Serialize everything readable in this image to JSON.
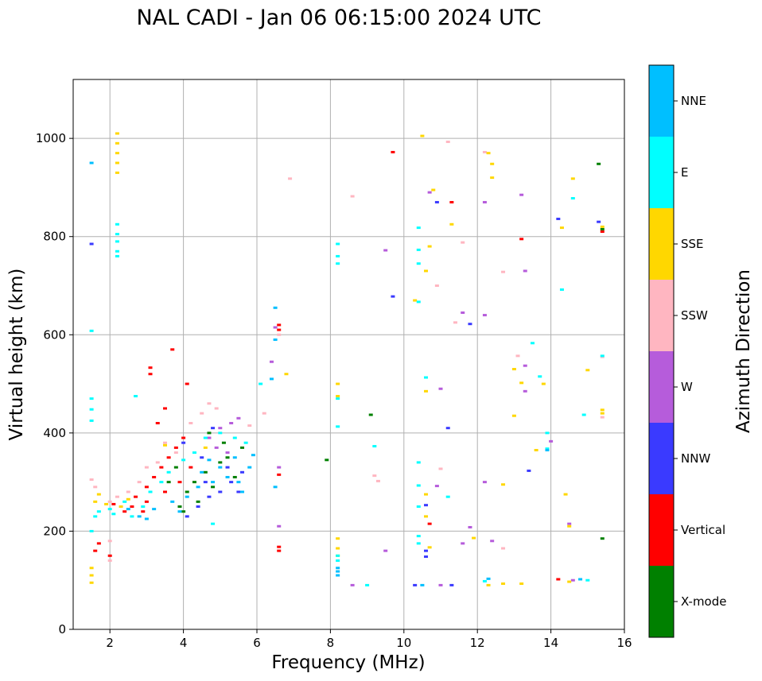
{
  "chart_data": {
    "type": "scatter",
    "title": "NAL CADI - Jan 06 06:15:00 2024 UTC",
    "xlabel": "Frequency (MHz)",
    "ylabel": "Virtual height (km)",
    "xlim": [
      1,
      16
    ],
    "ylim": [
      0,
      1120
    ],
    "xticks": [
      2,
      4,
      6,
      8,
      10,
      12,
      14,
      16
    ],
    "yticks": [
      0,
      200,
      400,
      600,
      800,
      1000
    ],
    "grid": true,
    "colorbar": {
      "label": "Azimuth Direction",
      "categories": [
        {
          "name": "X-mode",
          "color": "#008000"
        },
        {
          "name": "Vertical",
          "color": "#ff0000"
        },
        {
          "name": "NNW",
          "color": "#3a3aff"
        },
        {
          "name": "W",
          "color": "#b65cdb"
        },
        {
          "name": "SSW",
          "color": "#ffb6c1"
        },
        {
          "name": "SSE",
          "color": "#ffd700"
        },
        {
          "name": "E",
          "color": "#00ffff"
        },
        {
          "name": "NNE",
          "color": "#00bfff"
        }
      ]
    },
    "series": [
      {
        "name": "X-mode",
        "points": [
          [
            4.3,
            300
          ],
          [
            4.6,
            320
          ],
          [
            5.0,
            340
          ],
          [
            5.2,
            350
          ],
          [
            5.6,
            370
          ],
          [
            3.9,
            250
          ],
          [
            4.1,
            280
          ],
          [
            7.9,
            345
          ],
          [
            9.1,
            437
          ],
          [
            15.3,
            948
          ],
          [
            15.4,
            815
          ],
          [
            15.4,
            185
          ],
          [
            4.8,
            290
          ],
          [
            5.4,
            310
          ],
          [
            4.0,
            240
          ],
          [
            4.4,
            260
          ],
          [
            3.6,
            300
          ],
          [
            5.1,
            380
          ],
          [
            4.7,
            400
          ],
          [
            3.8,
            330
          ]
        ]
      },
      {
        "name": "Vertical",
        "points": [
          [
            2.1,
            255
          ],
          [
            2.4,
            240
          ],
          [
            2.7,
            270
          ],
          [
            3.0,
            290
          ],
          [
            3.2,
            310
          ],
          [
            3.4,
            330
          ],
          [
            3.6,
            350
          ],
          [
            3.8,
            370
          ],
          [
            4.0,
            390
          ],
          [
            3.3,
            420
          ],
          [
            3.5,
            450
          ],
          [
            3.1,
            520
          ],
          [
            3.1,
            533
          ],
          [
            3.7,
            570
          ],
          [
            4.1,
            500
          ],
          [
            6.6,
            620
          ],
          [
            6.6,
            610
          ],
          [
            6.6,
            315
          ],
          [
            6.6,
            168
          ],
          [
            6.6,
            160
          ],
          [
            9.7,
            972
          ],
          [
            11.3,
            870
          ],
          [
            13.2,
            795
          ],
          [
            15.4,
            810
          ],
          [
            10.7,
            215
          ],
          [
            14.2,
            102
          ],
          [
            1.6,
            160
          ],
          [
            1.7,
            175
          ],
          [
            2.0,
            150
          ],
          [
            3.0,
            260
          ],
          [
            2.6,
            250
          ],
          [
            3.9,
            300
          ],
          [
            4.2,
            330
          ],
          [
            2.9,
            240
          ],
          [
            3.5,
            280
          ]
        ]
      },
      {
        "name": "NNW",
        "points": [
          [
            4.1,
            230
          ],
          [
            4.4,
            250
          ],
          [
            4.7,
            270
          ],
          [
            5.0,
            280
          ],
          [
            5.3,
            300
          ],
          [
            5.6,
            320
          ],
          [
            4.0,
            380
          ],
          [
            4.5,
            350
          ],
          [
            4.6,
            300
          ],
          [
            5.2,
            330
          ],
          [
            1.5,
            785
          ],
          [
            9.7,
            678
          ],
          [
            10.9,
            870
          ],
          [
            11.8,
            622
          ],
          [
            14.2,
            836
          ],
          [
            15.3,
            830
          ],
          [
            13.4,
            323
          ],
          [
            10.6,
            160
          ],
          [
            10.6,
            148
          ],
          [
            11.3,
            90
          ],
          [
            10.3,
            90
          ],
          [
            10.6,
            253
          ],
          [
            11.2,
            410
          ],
          [
            4.8,
            410
          ],
          [
            5.5,
            280
          ]
        ]
      },
      {
        "name": "W",
        "points": [
          [
            4.7,
            390
          ],
          [
            5.0,
            410
          ],
          [
            5.3,
            420
          ],
          [
            5.5,
            430
          ],
          [
            4.9,
            370
          ],
          [
            5.2,
            360
          ],
          [
            6.5,
            615
          ],
          [
            6.6,
            210
          ],
          [
            6.6,
            330
          ],
          [
            6.4,
            545
          ],
          [
            9.5,
            772
          ],
          [
            10.7,
            890
          ],
          [
            11.0,
            490
          ],
          [
            11.6,
            645
          ],
          [
            12.2,
            870
          ],
          [
            12.2,
            640
          ],
          [
            12.2,
            300
          ],
          [
            12.4,
            180
          ],
          [
            13.2,
            885
          ],
          [
            13.3,
            730
          ],
          [
            13.3,
            537
          ],
          [
            13.3,
            485
          ],
          [
            14.0,
            383
          ],
          [
            14.5,
            215
          ],
          [
            14.6,
            100
          ],
          [
            11.0,
            90
          ],
          [
            8.6,
            90
          ],
          [
            9.5,
            160
          ],
          [
            11.6,
            175
          ],
          [
            11.8,
            208
          ],
          [
            10.9,
            292
          ]
        ]
      },
      {
        "name": "SSW",
        "points": [
          [
            2.0,
            260
          ],
          [
            2.2,
            270
          ],
          [
            2.5,
            280
          ],
          [
            2.8,
            300
          ],
          [
            3.0,
            330
          ],
          [
            3.3,
            340
          ],
          [
            3.5,
            380
          ],
          [
            3.8,
            360
          ],
          [
            4.2,
            420
          ],
          [
            4.5,
            440
          ],
          [
            4.7,
            460
          ],
          [
            1.5,
            305
          ],
          [
            1.6,
            290
          ],
          [
            2.0,
            180
          ],
          [
            2.0,
            140
          ],
          [
            6.6,
            600
          ],
          [
            6.9,
            918
          ],
          [
            8.6,
            882
          ],
          [
            9.2,
            313
          ],
          [
            9.3,
            302
          ],
          [
            11.2,
            993
          ],
          [
            10.9,
            700
          ],
          [
            11.4,
            625
          ],
          [
            11.6,
            788
          ],
          [
            12.2,
            972
          ],
          [
            12.7,
            728
          ],
          [
            12.7,
            165
          ],
          [
            13.1,
            557
          ],
          [
            15.4,
            555
          ],
          [
            15.4,
            432
          ],
          [
            11.0,
            327
          ],
          [
            6.2,
            440
          ],
          [
            5.8,
            415
          ],
          [
            4.9,
            450
          ]
        ]
      },
      {
        "name": "SSE",
        "points": [
          [
            2.2,
            930
          ],
          [
            2.2,
            950
          ],
          [
            2.2,
            970
          ],
          [
            2.2,
            990
          ],
          [
            2.2,
            1010
          ],
          [
            1.6,
            260
          ],
          [
            1.7,
            275
          ],
          [
            1.9,
            255
          ],
          [
            2.3,
            250
          ],
          [
            2.5,
            265
          ],
          [
            1.5,
            125
          ],
          [
            1.5,
            110
          ],
          [
            1.5,
            95
          ],
          [
            8.2,
            500
          ],
          [
            8.2,
            475
          ],
          [
            8.2,
            185
          ],
          [
            8.2,
            165
          ],
          [
            8.2,
            150
          ],
          [
            10.5,
            1005
          ],
          [
            10.8,
            895
          ],
          [
            10.7,
            780
          ],
          [
            10.6,
            730
          ],
          [
            10.3,
            670
          ],
          [
            10.6,
            485
          ],
          [
            10.6,
            275
          ],
          [
            10.6,
            230
          ],
          [
            10.7,
            167
          ],
          [
            11.3,
            825
          ],
          [
            12.3,
            970
          ],
          [
            12.4,
            948
          ],
          [
            12.4,
            920
          ],
          [
            12.7,
            295
          ],
          [
            12.3,
            90
          ],
          [
            12.7,
            93
          ],
          [
            13.0,
            530
          ],
          [
            13.0,
            435
          ],
          [
            13.2,
            502
          ],
          [
            13.2,
            93
          ],
          [
            13.6,
            365
          ],
          [
            13.8,
            500
          ],
          [
            14.3,
            818
          ],
          [
            14.4,
            275
          ],
          [
            14.6,
            918
          ],
          [
            14.5,
            97
          ],
          [
            14.5,
            210
          ],
          [
            15.0,
            528
          ],
          [
            15.4,
            447
          ],
          [
            15.4,
            440
          ],
          [
            15.4,
            820
          ],
          [
            11.9,
            186
          ],
          [
            6.8,
            520
          ],
          [
            3.5,
            375
          ],
          [
            4.6,
            370
          ]
        ]
      },
      {
        "name": "E",
        "points": [
          [
            2.2,
            825
          ],
          [
            2.2,
            805
          ],
          [
            2.2,
            790
          ],
          [
            2.2,
            770
          ],
          [
            2.2,
            760
          ],
          [
            1.5,
            200
          ],
          [
            1.6,
            230
          ],
          [
            1.7,
            240
          ],
          [
            2.0,
            245
          ],
          [
            2.1,
            235
          ],
          [
            2.4,
            260
          ],
          [
            2.6,
            230
          ],
          [
            2.9,
            250
          ],
          [
            3.1,
            280
          ],
          [
            3.4,
            300
          ],
          [
            3.6,
            320
          ],
          [
            4.0,
            345
          ],
          [
            4.3,
            360
          ],
          [
            4.6,
            390
          ],
          [
            5.0,
            400
          ],
          [
            5.4,
            390
          ],
          [
            5.7,
            380
          ],
          [
            6.1,
            500
          ],
          [
            8.2,
            785
          ],
          [
            8.2,
            760
          ],
          [
            8.2,
            745
          ],
          [
            8.2,
            470
          ],
          [
            8.2,
            413
          ],
          [
            8.2,
            150
          ],
          [
            8.2,
            140
          ],
          [
            10.4,
            818
          ],
          [
            10.4,
            773
          ],
          [
            10.4,
            745
          ],
          [
            10.4,
            667
          ],
          [
            10.4,
            340
          ],
          [
            10.4,
            293
          ],
          [
            10.4,
            250
          ],
          [
            10.4,
            190
          ],
          [
            10.4,
            175
          ],
          [
            11.2,
            270
          ],
          [
            12.2,
            98
          ],
          [
            13.5,
            583
          ],
          [
            13.7,
            515
          ],
          [
            13.9,
            400
          ],
          [
            13.9,
            368
          ],
          [
            14.3,
            692
          ],
          [
            14.6,
            878
          ],
          [
            14.9,
            437
          ],
          [
            15.0,
            100
          ],
          [
            15.4,
            557
          ],
          [
            9.2,
            373
          ],
          [
            9.0,
            90
          ],
          [
            1.5,
            470
          ],
          [
            1.5,
            448
          ],
          [
            1.5,
            425
          ],
          [
            1.5,
            608
          ],
          [
            2.7,
            475
          ],
          [
            4.8,
            215
          ],
          [
            10.6,
            513
          ]
        ]
      },
      {
        "name": "NNE",
        "points": [
          [
            1.5,
            950
          ],
          [
            2.5,
            245
          ],
          [
            2.8,
            230
          ],
          [
            3.2,
            245
          ],
          [
            3.7,
            260
          ],
          [
            4.1,
            270
          ],
          [
            4.4,
            290
          ],
          [
            4.8,
            300
          ],
          [
            5.2,
            310
          ],
          [
            5.5,
            300
          ],
          [
            5.8,
            330
          ],
          [
            5.4,
            350
          ],
          [
            6.5,
            655
          ],
          [
            6.5,
            590
          ],
          [
            6.5,
            290
          ],
          [
            6.4,
            510
          ],
          [
            8.2,
            125
          ],
          [
            8.2,
            118
          ],
          [
            8.2,
            110
          ],
          [
            10.5,
            90
          ],
          [
            12.3,
            103
          ],
          [
            13.9,
            365
          ],
          [
            14.8,
            102
          ],
          [
            5.0,
            330
          ],
          [
            4.5,
            320
          ],
          [
            3.9,
            240
          ],
          [
            3.0,
            225
          ],
          [
            5.9,
            355
          ],
          [
            4.7,
            345
          ],
          [
            5.6,
            280
          ]
        ]
      }
    ]
  }
}
